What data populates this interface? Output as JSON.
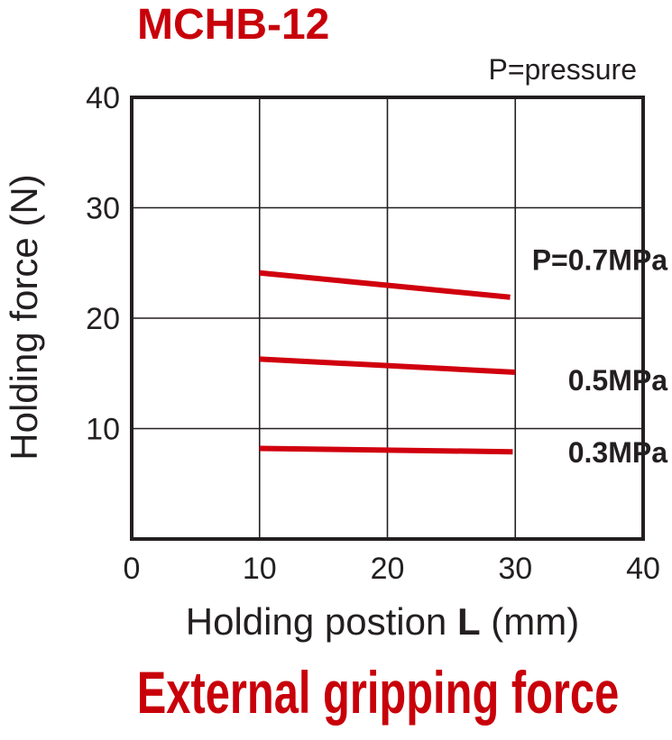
{
  "chart_data": {
    "type": "line",
    "title": "MCHB-12",
    "note": "P=pressure",
    "subtitle": "External gripping force",
    "xlabel": "Holding postion L (mm)",
    "xlabel_parts": {
      "before": "Holding postion ",
      "bold": "L",
      "after": " (mm)"
    },
    "ylabel": "Holding force (N)",
    "xlim": [
      0,
      40
    ],
    "ylim": [
      0,
      40
    ],
    "x_ticks": [
      0,
      10,
      20,
      30,
      40
    ],
    "y_ticks": [
      10,
      20,
      30,
      40
    ],
    "x_tick_labels": [
      "0",
      "10",
      "20",
      "30",
      "40"
    ],
    "y_tick_labels": [
      "10",
      "20",
      "30",
      "40"
    ],
    "grid": true,
    "series": [
      {
        "name": "P=0.7MPa",
        "x": [
          10,
          29.6
        ],
        "y": [
          24.1,
          21.9
        ]
      },
      {
        "name": "0.5MPa",
        "x": [
          10,
          30
        ],
        "y": [
          16.3,
          15.1
        ]
      },
      {
        "name": "0.3MPa",
        "x": [
          10,
          29.8
        ],
        "y": [
          8.2,
          7.9
        ]
      }
    ],
    "colors": {
      "series": "#d0000e",
      "title": "#c8000a",
      "axis": "#231f20",
      "grid": "#231f20"
    }
  }
}
